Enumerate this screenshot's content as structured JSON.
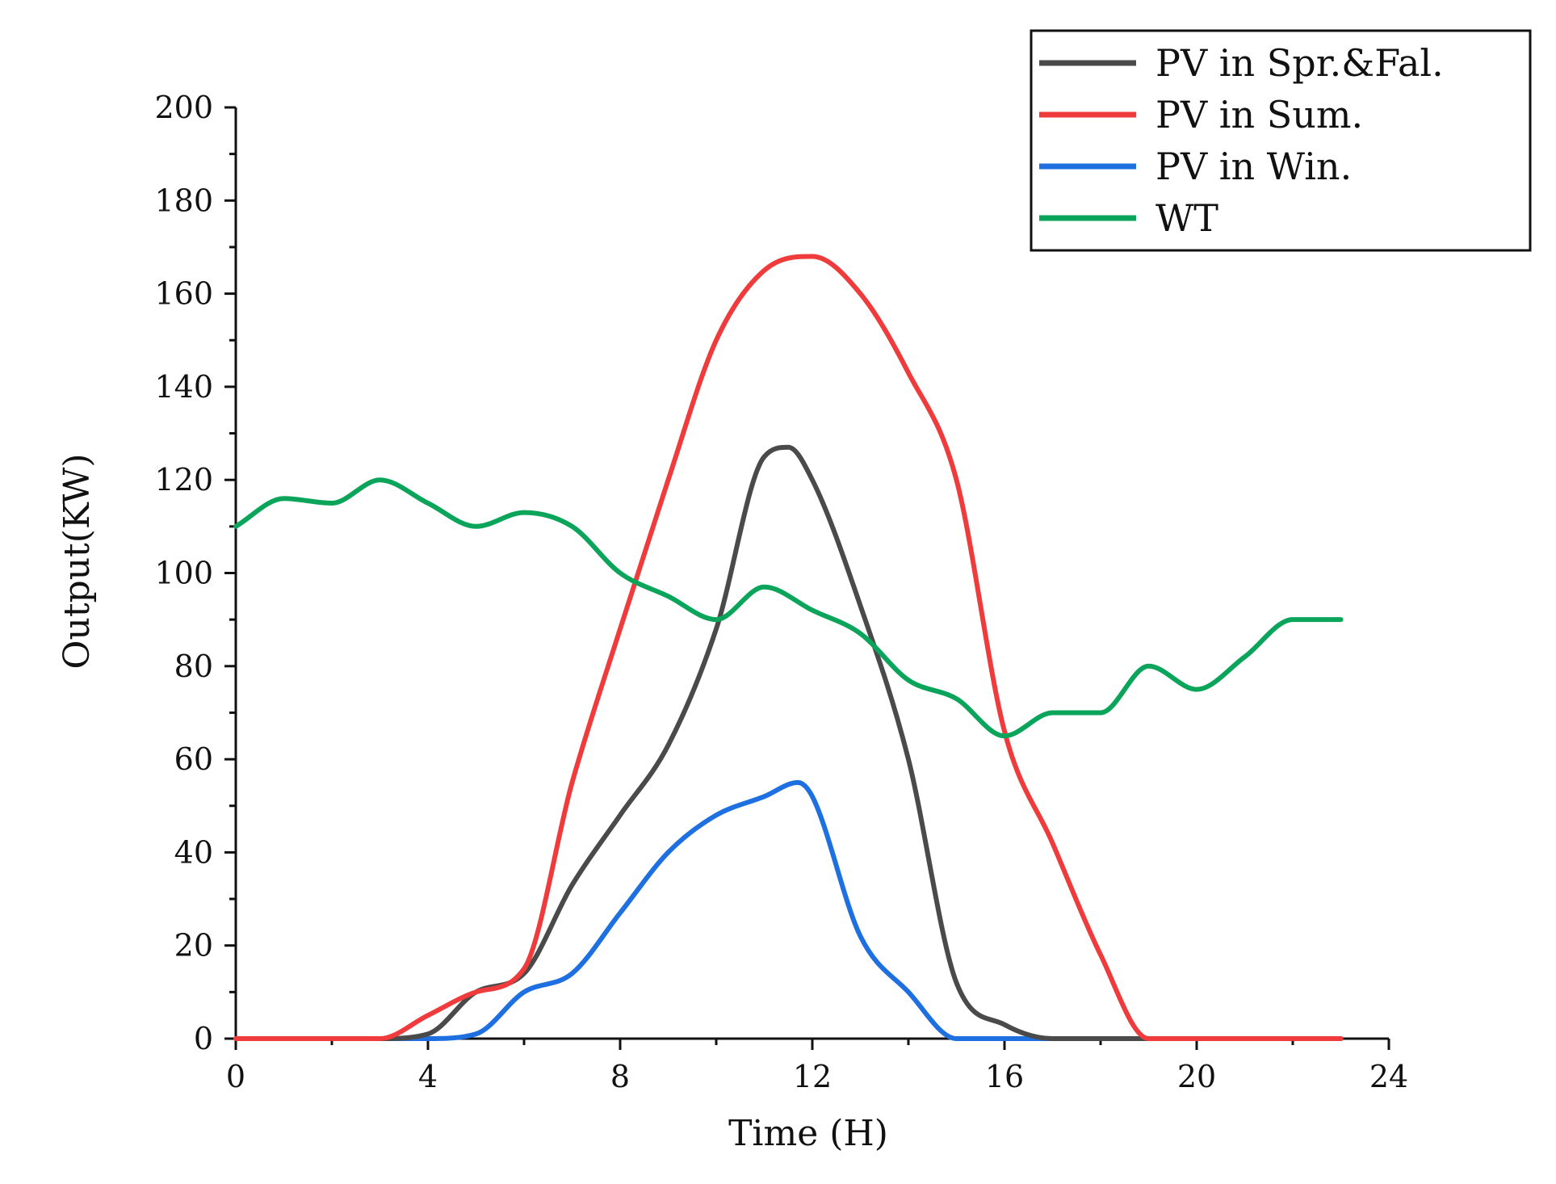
{
  "chart_data": {
    "type": "line",
    "title": "",
    "xlabel": "Time (H)",
    "ylabel": "Output(KW)",
    "xlim": [
      0,
      24
    ],
    "ylim": [
      0,
      200
    ],
    "xticks": [
      0,
      4,
      8,
      12,
      16,
      20,
      24
    ],
    "yticks": [
      0,
      20,
      40,
      60,
      80,
      100,
      120,
      140,
      160,
      180,
      200
    ],
    "grid": false,
    "legend_position": "top-right",
    "series": [
      {
        "name": "PV in Spr.&Fal.",
        "color": "#4a4a4a",
        "x": [
          0,
          1,
          2,
          3,
          4,
          5,
          6,
          7,
          8,
          9,
          10,
          11,
          11.5,
          12,
          13,
          14,
          15,
          16,
          17,
          18,
          19,
          20,
          21,
          22,
          23
        ],
        "y": [
          0,
          0,
          0,
          0,
          1,
          10,
          14,
          33,
          48,
          63,
          88,
          125,
          127,
          120,
          93,
          60,
          12,
          3,
          0,
          0,
          0,
          0,
          0,
          0,
          0
        ]
      },
      {
        "name": "PV in Sum.",
        "color": "#ef3b3b",
        "x": [
          0,
          1,
          2,
          3,
          4,
          5,
          6,
          7,
          8,
          9,
          10,
          11,
          12,
          13,
          14,
          15,
          16,
          17,
          18,
          19,
          20,
          21,
          22,
          23
        ],
        "y": [
          0,
          0,
          0,
          0,
          5,
          10,
          15,
          55,
          88,
          120,
          150,
          165,
          168,
          160,
          143,
          120,
          66,
          42,
          18,
          0,
          0,
          0,
          0,
          0
        ]
      },
      {
        "name": "PV in Win.",
        "color": "#1e6fe0",
        "x": [
          0,
          1,
          2,
          3,
          4,
          5,
          6,
          7,
          8,
          9,
          10,
          11,
          11.7,
          12,
          13,
          14,
          15,
          16,
          17,
          18,
          19,
          20,
          21,
          22,
          23
        ],
        "y": [
          0,
          0,
          0,
          0,
          0,
          1,
          10,
          14,
          27,
          40,
          48,
          52,
          55,
          52,
          22,
          10,
          0,
          0,
          0,
          0,
          0,
          0,
          0,
          0,
          0
        ]
      },
      {
        "name": "WT",
        "color": "#0aa55a",
        "x": [
          0,
          1,
          2,
          3,
          4,
          5,
          6,
          7,
          8,
          9,
          10,
          11,
          12,
          13,
          14,
          15,
          16,
          17,
          18,
          19,
          20,
          21,
          22,
          23
        ],
        "y": [
          110,
          116,
          115,
          120,
          115,
          110,
          113,
          110,
          100,
          95,
          90,
          97,
          92,
          87,
          77,
          73,
          65,
          70,
          70,
          80,
          75,
          82,
          90,
          90
        ]
      }
    ]
  }
}
